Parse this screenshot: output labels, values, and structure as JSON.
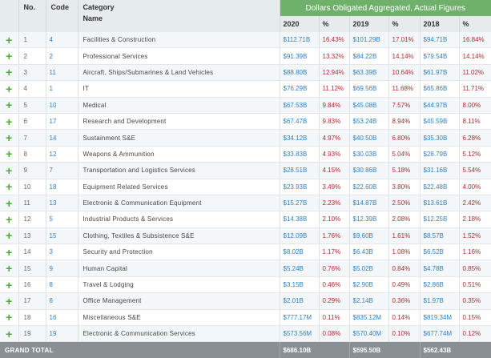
{
  "header": {
    "no": "No.",
    "code": "Code",
    "category": "Category",
    "name": "Name",
    "title": "Dollars Obligated Aggregated, Actual Figures",
    "years": [
      "2020",
      "2019",
      "2018"
    ],
    "pct": "%"
  },
  "rows": [
    {
      "no": "1",
      "code": "4",
      "name": "Facilities & Construction",
      "v2020": "$112.71",
      "u2020": "B",
      "p2020": "16.43%",
      "v2019": "$101.29",
      "u2019": "B",
      "p2019": "17.01%",
      "v2018": "$94.71",
      "u2018": "B",
      "p2018": "16.84%"
    },
    {
      "no": "2",
      "code": "2",
      "name": "Professional Services",
      "v2020": "$91.39",
      "u2020": "B",
      "p2020": "13.32%",
      "v2019": "$84.22",
      "u2019": "B",
      "p2019": "14.14%",
      "v2018": "$79.54",
      "u2018": "B",
      "p2018": "14.14%"
    },
    {
      "no": "3",
      "code": "11",
      "name": "Aircraft, Ships/Submarines & Land Vehicles",
      "v2020": "$88.80",
      "u2020": "B",
      "p2020": "12.94%",
      "v2019": "$63.39",
      "u2019": "B",
      "p2019": "10.64%",
      "v2018": "$61.97",
      "u2018": "B",
      "p2018": "11.02%"
    },
    {
      "no": "4",
      "code": "1",
      "name": "IT",
      "v2020": "$76.29",
      "u2020": "B",
      "p2020": "11.12%",
      "v2019": "$69.56",
      "u2019": "B",
      "p2019": "11.68%",
      "v2018": "$65.86",
      "u2018": "B",
      "p2018": "11.71%"
    },
    {
      "no": "5",
      "code": "10",
      "name": "Medical",
      "v2020": "$67.53",
      "u2020": "B",
      "p2020": "9.84%",
      "v2019": "$45.08",
      "u2019": "B",
      "p2019": "7.57%",
      "v2018": "$44.97",
      "u2018": "B",
      "p2018": "8.00%"
    },
    {
      "no": "6",
      "code": "17",
      "name": "Research and Development",
      "v2020": "$67.47",
      "u2020": "B",
      "p2020": "9.83%",
      "v2019": "$53.24",
      "u2019": "B",
      "p2019": "8.94%",
      "v2018": "$45.59",
      "u2018": "B",
      "p2018": "8.11%"
    },
    {
      "no": "7",
      "code": "14",
      "name": "Sustainment S&E",
      "v2020": "$34.12",
      "u2020": "B",
      "p2020": "4.97%",
      "v2019": "$40.50",
      "u2019": "B",
      "p2019": "6.80%",
      "v2018": "$35.30",
      "u2018": "B",
      "p2018": "6.28%"
    },
    {
      "no": "8",
      "code": "12",
      "name": "Weapons & Ammunition",
      "v2020": "$33.83",
      "u2020": "B",
      "p2020": "4.93%",
      "v2019": "$30.03",
      "u2019": "B",
      "p2019": "5.04%",
      "v2018": "$28.79",
      "u2018": "B",
      "p2018": "5.12%"
    },
    {
      "no": "9",
      "code": "7",
      "name": "Transportation and Logistics Services",
      "v2020": "$28.51",
      "u2020": "B",
      "p2020": "4.15%",
      "v2019": "$30.86",
      "u2019": "B",
      "p2019": "5.18%",
      "v2018": "$31.16",
      "u2018": "B",
      "p2018": "5.54%"
    },
    {
      "no": "10",
      "code": "18",
      "name": "Equipment Related Services",
      "v2020": "$23.93",
      "u2020": "B",
      "p2020": "3.49%",
      "v2019": "$22.60",
      "u2019": "B",
      "p2019": "3.80%",
      "v2018": "$22.48",
      "u2018": "B",
      "p2018": "4.00%"
    },
    {
      "no": "11",
      "code": "13",
      "name": "Electronic & Communication Equipment",
      "v2020": "$15.27",
      "u2020": "B",
      "p2020": "2.23%",
      "v2019": "$14.87",
      "u2019": "B",
      "p2019": "2.50%",
      "v2018": "$13.61",
      "u2018": "B",
      "p2018": "2.42%"
    },
    {
      "no": "12",
      "code": "5",
      "name": "Industrial Products & Services",
      "v2020": "$14.38",
      "u2020": "B",
      "p2020": "2.10%",
      "v2019": "$12.39",
      "u2019": "B",
      "p2019": "2.08%",
      "v2018": "$12.25",
      "u2018": "B",
      "p2018": "2.18%"
    },
    {
      "no": "13",
      "code": "15",
      "name": "Clothing, Textiles & Subsistence S&E",
      "v2020": "$12.09",
      "u2020": "B",
      "p2020": "1.76%",
      "v2019": "$9.60",
      "u2019": "B",
      "p2019": "1.61%",
      "v2018": "$8.57",
      "u2018": "B",
      "p2018": "1.52%"
    },
    {
      "no": "14",
      "code": "3",
      "name": "Security and Protection",
      "v2020": "$8.02",
      "u2020": "B",
      "p2020": "1.17%",
      "v2019": "$6.43",
      "u2019": "B",
      "p2019": "1.08%",
      "v2018": "$6.52",
      "u2018": "B",
      "p2018": "1.16%"
    },
    {
      "no": "15",
      "code": "9",
      "name": "Human Capital",
      "v2020": "$5.24",
      "u2020": "B",
      "p2020": "0.76%",
      "v2019": "$5.02",
      "u2019": "B",
      "p2019": "0.84%",
      "v2018": "$4.78",
      "u2018": "B",
      "p2018": "0.85%"
    },
    {
      "no": "16",
      "code": "8",
      "name": "Travel & Lodging",
      "v2020": "$3.15",
      "u2020": "B",
      "p2020": "0.46%",
      "v2019": "$2.90",
      "u2019": "B",
      "p2019": "0.49%",
      "v2018": "$2.86",
      "u2018": "B",
      "p2018": "0.51%"
    },
    {
      "no": "17",
      "code": "6",
      "name": "Office Management",
      "v2020": "$2.01",
      "u2020": "B",
      "p2020": "0.29%",
      "v2019": "$2.14",
      "u2019": "B",
      "p2019": "0.36%",
      "v2018": "$1.97",
      "u2018": "B",
      "p2018": "0.35%"
    },
    {
      "no": "18",
      "code": "16",
      "name": "Miscellaneous S&E",
      "v2020": "$777.17",
      "u2020": "M",
      "p2020": "0.11%",
      "v2019": "$835.12",
      "u2019": "M",
      "p2019": "0.14%",
      "v2018": "$819.34",
      "u2018": "M",
      "p2018": "0.15%"
    },
    {
      "no": "19",
      "code": "19",
      "name": "Electronic & Communication Services",
      "v2020": "$573.56",
      "u2020": "M",
      "p2020": "0.08%",
      "v2019": "$570.40",
      "u2019": "M",
      "p2019": "0.10%",
      "v2018": "$677.74",
      "u2018": "M",
      "p2018": "0.12%"
    }
  ],
  "footer": {
    "label": "GRAND TOTAL",
    "t2020": "$686.10B",
    "t2019": "$595.50B",
    "t2018": "$562.43B"
  },
  "icons": {
    "expand": "plus-icon"
  },
  "colors": {
    "header_green": "#6fb06a",
    "value_blue": "#2f7fc3",
    "pct_red": "#b02a30",
    "plus_green": "#4caa3a",
    "footer_gray": "#8a8f93"
  }
}
